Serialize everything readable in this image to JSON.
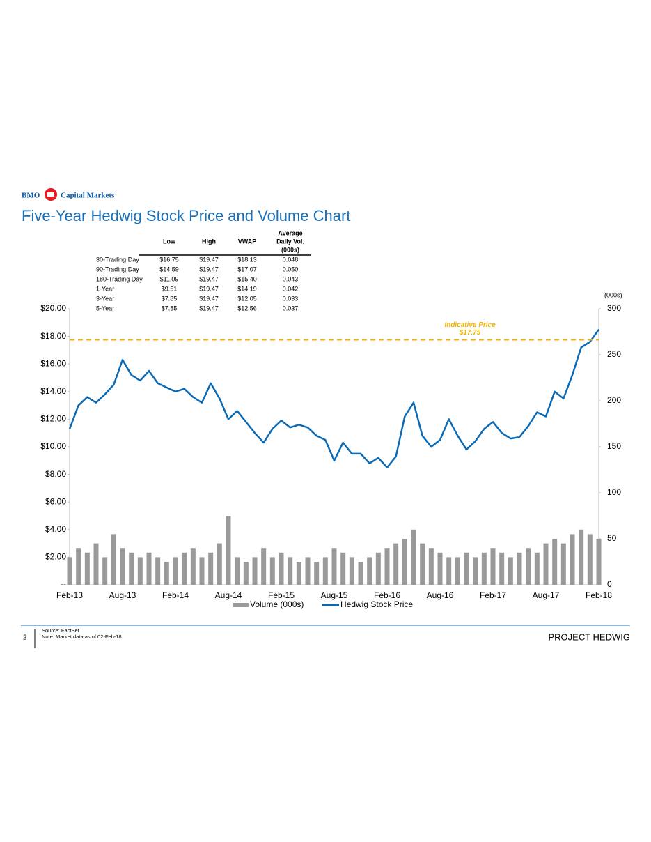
{
  "header": {
    "logo": "BMO",
    "brand": "Capital Markets",
    "title": "Five-Year Hedwig Stock Price and Volume Chart"
  },
  "table": {
    "columns": [
      "Low",
      "High",
      "VWAP",
      [
        "Average",
        "Daily Vol.",
        "(000s)"
      ]
    ],
    "rows": [
      {
        "label": "30-Trading Day",
        "cells": [
          "$16.75",
          "$19.47",
          "$18.13",
          "0.048"
        ]
      },
      {
        "label": "90-Trading Day",
        "cells": [
          "$14.59",
          "$19.47",
          "$17.07",
          "0.050"
        ]
      },
      {
        "label": "180-Trading Day",
        "cells": [
          "$11.09",
          "$19.47",
          "$15.40",
          "0.043"
        ]
      },
      {
        "label": "1-Year",
        "cells": [
          "$9.51",
          "$19.47",
          "$14.19",
          "0.042"
        ]
      },
      {
        "label": "3-Year",
        "cells": [
          "$7.85",
          "$19.47",
          "$12.05",
          "0.033"
        ]
      },
      {
        "label": "5-Year",
        "cells": [
          "$7.85",
          "$19.47",
          "$12.56",
          "0.037"
        ]
      }
    ]
  },
  "chart_data": {
    "type": "combo",
    "categories": [
      "Feb-13",
      null,
      null,
      null,
      null,
      null,
      "Aug-13",
      null,
      null,
      null,
      null,
      null,
      "Feb-14",
      null,
      null,
      null,
      null,
      null,
      "Aug-14",
      null,
      null,
      null,
      null,
      null,
      "Feb-15",
      null,
      null,
      null,
      null,
      null,
      "Aug-15",
      null,
      null,
      null,
      null,
      null,
      "Feb-16",
      null,
      null,
      null,
      null,
      null,
      "Aug-16",
      null,
      null,
      null,
      null,
      null,
      "Feb-17",
      null,
      null,
      null,
      null,
      null,
      "Aug-17",
      null,
      null,
      null,
      null,
      null,
      "Feb-18"
    ],
    "series": [
      {
        "name": "Volume (000s)",
        "type": "bar",
        "axis": "y2",
        "color": "#9a9a9a",
        "values": [
          30,
          40,
          35,
          45,
          30,
          55,
          40,
          35,
          30,
          35,
          30,
          25,
          30,
          35,
          40,
          30,
          35,
          45,
          75,
          30,
          25,
          30,
          40,
          30,
          35,
          30,
          25,
          30,
          25,
          30,
          40,
          35,
          30,
          25,
          30,
          35,
          40,
          45,
          50,
          60,
          45,
          40,
          35,
          30,
          30,
          35,
          30,
          35,
          40,
          35,
          30,
          35,
          40,
          35,
          45,
          50,
          45,
          55,
          60,
          55,
          50
        ]
      },
      {
        "name": "Hedwig Stock Price",
        "type": "line",
        "axis": "y",
        "color": "#0a6ab6",
        "values": [
          11.3,
          13.0,
          13.6,
          13.2,
          13.8,
          14.5,
          16.3,
          15.2,
          14.8,
          15.5,
          14.6,
          14.3,
          14.0,
          14.2,
          13.6,
          13.2,
          14.6,
          13.5,
          12.0,
          12.6,
          11.8,
          11.0,
          10.3,
          11.3,
          11.9,
          11.4,
          11.6,
          11.4,
          10.8,
          10.5,
          9.0,
          10.3,
          9.5,
          9.5,
          8.8,
          9.2,
          8.5,
          9.3,
          12.2,
          13.2,
          10.8,
          10.0,
          10.5,
          12.0,
          10.8,
          9.8,
          10.4,
          11.3,
          11.8,
          11.0,
          10.6,
          10.7,
          11.5,
          12.5,
          12.2,
          14.0,
          13.5,
          15.2,
          17.2,
          17.6,
          18.5
        ]
      }
    ],
    "ylim": [
      0,
      20
    ],
    "yticks": [
      {
        "value": 0,
        "label": "--"
      },
      {
        "value": 2,
        "label": "$2.00"
      },
      {
        "value": 4,
        "label": "$4.00"
      },
      {
        "value": 6,
        "label": "$6.00"
      },
      {
        "value": 8,
        "label": "$8.00"
      },
      {
        "value": 10,
        "label": "$10.00"
      },
      {
        "value": 12,
        "label": "$12.00"
      },
      {
        "value": 14,
        "label": "$14.00"
      },
      {
        "value": 16,
        "label": "$16.00"
      },
      {
        "value": 18,
        "label": "$18.00"
      },
      {
        "value": 20,
        "label": "$20.00"
      }
    ],
    "y2lim": [
      0,
      300
    ],
    "y2ticks": [
      0,
      50,
      100,
      150,
      200,
      250,
      300
    ],
    "y2label": "(000s)",
    "reference_line": {
      "value": 17.75,
      "label": "Indicative Price",
      "value_label": "$17.75",
      "color": "#f0b400"
    },
    "legend": "bottom"
  },
  "footer": {
    "page": "2",
    "source": "Source: FactSet",
    "note": "Note: Market data as of 02-Feb-18.",
    "project": "PROJECT HEDWIG"
  }
}
